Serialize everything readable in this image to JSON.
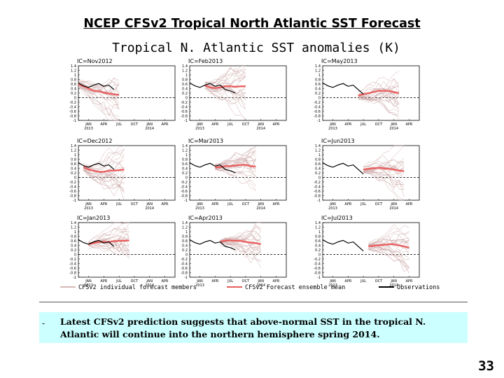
{
  "slide": {
    "title": "NCEP CFSv2 Tropical North Atlantic SST Forecast",
    "figure_title": "Tropical N. Atlantic SST anomalies (K)",
    "bullet": "-",
    "note": "Latest CFSv2 prediction suggests that above-normal SST in the tropical N. Atlantic will continue into  the northern hemisphere spring 2014.",
    "page_number": "33"
  },
  "colors": {
    "members": "#c8a0a0",
    "ensemble_mean": "#e86060",
    "observations": "#000000",
    "note_background": "#ccffff"
  },
  "legend": [
    {
      "label": "CFSv2 individual forecast members",
      "color": "#c8a0a0"
    },
    {
      "label": "CFSv2 Forecast ensemble mean",
      "color": "#e86060"
    },
    {
      "label": "Observations",
      "color": "#000000"
    }
  ],
  "chart_data": {
    "type": "line",
    "title": "Tropical N. Atlantic SST anomalies (K)",
    "ylim": [
      -1,
      1.4
    ],
    "yticks": [
      "1.4",
      "1.2",
      "1",
      "0.8",
      "0.6",
      "0.4",
      "0.2",
      "0",
      "-0.2",
      "-0.4",
      "-0.6",
      "-0.8",
      "-1"
    ],
    "grid": false,
    "legend_position": "bottom",
    "panels": [
      {
        "ic_label": "IC=Nov2012",
        "x_ticks": [
          "JAN\n2013",
          "APR",
          "JUL",
          "OCT",
          "JAN\n2014",
          "APR"
        ],
        "x_start": "2012-11",
        "x_end": "2014-06",
        "observations": {
          "x": [
            "2012-11",
            "2012-12",
            "2013-01",
            "2013-02",
            "2013-03",
            "2013-04",
            "2013-05",
            "2013-06"
          ],
          "y": [
            0.65,
            0.52,
            0.45,
            0.55,
            0.62,
            0.5,
            0.55,
            0.35
          ]
        },
        "ensemble_mean": {
          "x": [
            "2012-11",
            "2012-12",
            "2013-01",
            "2013-02",
            "2013-03",
            "2013-04",
            "2013-05",
            "2013-06",
            "2013-07"
          ],
          "y": [
            0.6,
            0.5,
            0.4,
            0.3,
            0.28,
            0.22,
            0.18,
            0.15,
            0.12
          ]
        }
      },
      {
        "ic_label": "IC=Feb2013",
        "x_ticks": [
          "JAN\n2013",
          "APR",
          "JUL",
          "OCT",
          "JAN\n2014",
          "APR"
        ],
        "x_start": "2012-11",
        "x_end": "2014-06",
        "observations": {
          "x": [
            "2012-11",
            "2012-12",
            "2013-01",
            "2013-02",
            "2013-03",
            "2013-04",
            "2013-05",
            "2013-06",
            "2013-07",
            "2013-08"
          ],
          "y": [
            0.65,
            0.52,
            0.45,
            0.55,
            0.62,
            0.5,
            0.55,
            0.35,
            0.3,
            0.2
          ]
        },
        "ensemble_mean": {
          "x": [
            "2013-02",
            "2013-03",
            "2013-04",
            "2013-05",
            "2013-06",
            "2013-07",
            "2013-08",
            "2013-09",
            "2013-10"
          ],
          "y": [
            0.55,
            0.45,
            0.42,
            0.45,
            0.5,
            0.5,
            0.48,
            0.5,
            0.5
          ]
        }
      },
      {
        "ic_label": "IC=May2013",
        "x_ticks": [
          "JAN\n2013",
          "APR",
          "JUL",
          "OCT",
          "JAN\n2014",
          "APR"
        ],
        "x_start": "2012-11",
        "x_end": "2014-06",
        "observations": {
          "x": [
            "2012-11",
            "2012-12",
            "2013-01",
            "2013-02",
            "2013-03",
            "2013-04",
            "2013-05",
            "2013-06",
            "2013-07"
          ],
          "y": [
            0.65,
            0.52,
            0.45,
            0.55,
            0.62,
            0.5,
            0.55,
            0.35,
            0.15
          ]
        },
        "ensemble_mean": {
          "x": [
            "2013-06",
            "2013-07",
            "2013-08",
            "2013-09",
            "2013-10",
            "2013-11",
            "2013-12",
            "2014-01",
            "2014-02"
          ],
          "y": [
            0.1,
            0.15,
            0.2,
            0.25,
            0.3,
            0.3,
            0.3,
            0.25,
            0.2
          ]
        }
      },
      {
        "ic_label": "IC=Dec2012",
        "x_ticks": [
          "JAN\n2013",
          "APR",
          "JUL",
          "OCT",
          "JAN\n2014",
          "APR"
        ],
        "x_start": "2012-11",
        "x_end": "2014-06",
        "observations": {
          "x": [
            "2012-11",
            "2012-12",
            "2013-01",
            "2013-02",
            "2013-03",
            "2013-04",
            "2013-05",
            "2013-06"
          ],
          "y": [
            0.65,
            0.52,
            0.45,
            0.55,
            0.62,
            0.5,
            0.55,
            0.35
          ]
        },
        "ensemble_mean": {
          "x": [
            "2012-12",
            "2013-01",
            "2013-02",
            "2013-03",
            "2013-04",
            "2013-05",
            "2013-06",
            "2013-07",
            "2013-08"
          ],
          "y": [
            0.45,
            0.35,
            0.3,
            0.25,
            0.25,
            0.3,
            0.3,
            0.32,
            0.35
          ]
        }
      },
      {
        "ic_label": "IC=Mar2013",
        "x_ticks": [
          "JAN\n2013",
          "APR",
          "JUL",
          "OCT",
          "JAN\n2014",
          "APR"
        ],
        "x_start": "2012-11",
        "x_end": "2014-06",
        "observations": {
          "x": [
            "2012-11",
            "2012-12",
            "2013-01",
            "2013-02",
            "2013-03",
            "2013-04",
            "2013-05",
            "2013-06",
            "2013-07",
            "2013-08"
          ],
          "y": [
            0.65,
            0.52,
            0.45,
            0.55,
            0.62,
            0.5,
            0.55,
            0.35,
            0.3,
            0.2
          ]
        },
        "ensemble_mean": {
          "x": [
            "2013-04",
            "2013-05",
            "2013-06",
            "2013-07",
            "2013-08",
            "2013-09",
            "2013-10",
            "2013-11",
            "2013-12"
          ],
          "y": [
            0.45,
            0.45,
            0.5,
            0.5,
            0.52,
            0.55,
            0.55,
            0.5,
            0.48
          ]
        }
      },
      {
        "ic_label": "IC=Jun2013",
        "x_ticks": [
          "JAN\n2013",
          "APR",
          "JUL",
          "OCT",
          "JAN\n2014",
          "APR"
        ],
        "x_start": "2012-11",
        "x_end": "2014-06",
        "observations": {
          "x": [
            "2012-11",
            "2012-12",
            "2013-01",
            "2013-02",
            "2013-03",
            "2013-04",
            "2013-05",
            "2013-06",
            "2013-07"
          ],
          "y": [
            0.65,
            0.52,
            0.45,
            0.55,
            0.62,
            0.5,
            0.55,
            0.35,
            0.15
          ]
        },
        "ensemble_mean": {
          "x": [
            "2013-07",
            "2013-08",
            "2013-09",
            "2013-10",
            "2013-11",
            "2013-12",
            "2014-01",
            "2014-02",
            "2014-03"
          ],
          "y": [
            0.35,
            0.38,
            0.4,
            0.42,
            0.4,
            0.38,
            0.35,
            0.3,
            0.28
          ]
        }
      },
      {
        "ic_label": "IC=Jan2013",
        "x_ticks": [
          "JAN\n2013",
          "APR",
          "JUL",
          "OCT",
          "JAN\n2014",
          "APR"
        ],
        "x_start": "2012-11",
        "x_end": "2014-06",
        "observations": {
          "x": [
            "2012-11",
            "2012-12",
            "2013-01",
            "2013-02",
            "2013-03",
            "2013-04",
            "2013-05",
            "2013-06"
          ],
          "y": [
            0.65,
            0.52,
            0.45,
            0.55,
            0.62,
            0.5,
            0.55,
            0.35
          ]
        },
        "ensemble_mean": {
          "x": [
            "2013-01",
            "2013-02",
            "2013-03",
            "2013-04",
            "2013-05",
            "2013-06",
            "2013-07",
            "2013-08",
            "2013-09"
          ],
          "y": [
            0.45,
            0.5,
            0.55,
            0.55,
            0.55,
            0.58,
            0.6,
            0.6,
            0.62
          ]
        }
      },
      {
        "ic_label": "IC=Apr2013",
        "x_ticks": [
          "JAN\n2013",
          "APR",
          "JUL",
          "OCT",
          "JAN\n2014",
          "APR"
        ],
        "x_start": "2012-11",
        "x_end": "2014-06",
        "observations": {
          "x": [
            "2012-11",
            "2012-12",
            "2013-01",
            "2013-02",
            "2013-03",
            "2013-04",
            "2013-05",
            "2013-06",
            "2013-07",
            "2013-08"
          ],
          "y": [
            0.65,
            0.52,
            0.45,
            0.55,
            0.62,
            0.5,
            0.55,
            0.35,
            0.3,
            0.2
          ]
        },
        "ensemble_mean": {
          "x": [
            "2013-05",
            "2013-06",
            "2013-07",
            "2013-08",
            "2013-09",
            "2013-10",
            "2013-11",
            "2013-12",
            "2014-01"
          ],
          "y": [
            0.55,
            0.6,
            0.62,
            0.6,
            0.6,
            0.55,
            0.52,
            0.5,
            0.45
          ]
        }
      },
      {
        "ic_label": "IC=Jul2013",
        "x_ticks": [
          "JAN\n2013",
          "APR",
          "JUL",
          "OCT",
          "JAN\n2014",
          "APR"
        ],
        "x_start": "2012-11",
        "x_end": "2014-06",
        "observations": {
          "x": [
            "2012-11",
            "2012-12",
            "2013-01",
            "2013-02",
            "2013-03",
            "2013-04",
            "2013-05",
            "2013-06",
            "2013-07"
          ],
          "y": [
            0.65,
            0.52,
            0.45,
            0.55,
            0.62,
            0.5,
            0.55,
            0.35,
            0.15
          ]
        },
        "ensemble_mean": {
          "x": [
            "2013-08",
            "2013-09",
            "2013-10",
            "2013-11",
            "2013-12",
            "2014-01",
            "2014-02",
            "2014-03",
            "2014-04"
          ],
          "y": [
            0.35,
            0.38,
            0.4,
            0.42,
            0.45,
            0.45,
            0.4,
            0.35,
            0.3
          ]
        }
      }
    ]
  }
}
